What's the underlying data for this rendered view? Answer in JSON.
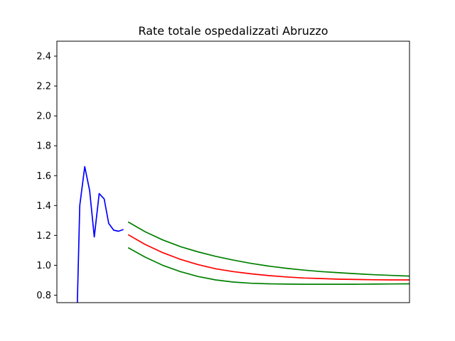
{
  "chart_data": {
    "type": "line",
    "title": "Rate totale ospedalizzati Abruzzo",
    "xlabel": "",
    "ylabel": "",
    "ylim": [
      0.75,
      2.5
    ],
    "xlim": [
      0,
      100
    ],
    "yticks": [
      0.8,
      1.0,
      1.2,
      1.4,
      1.6,
      1.8,
      2.0,
      2.2,
      2.4
    ],
    "ytick_labels": [
      "0.8",
      "1.0",
      "1.2",
      "1.4",
      "1.6",
      "1.8",
      "2.0",
      "2.2",
      "2.4"
    ],
    "grid": false,
    "series": [
      {
        "color": "#0000ff",
        "x": [
          5.8,
          6.5,
          7.9,
          9.3,
          10.6,
          12.0,
          13.4,
          14.7,
          16.1,
          17.5,
          18.9
        ],
        "y": [
          0.75,
          1.4,
          1.66,
          1.5,
          1.19,
          1.48,
          1.445,
          1.28,
          1.235,
          1.228,
          1.24
        ]
      },
      {
        "color": "#ff0000",
        "x": [
          20.2,
          25,
          30,
          35,
          40,
          45,
          50,
          55,
          60,
          65,
          70,
          75,
          80,
          85,
          90,
          95,
          100
        ],
        "y": [
          1.205,
          1.14,
          1.085,
          1.04,
          1.005,
          0.977,
          0.958,
          0.943,
          0.931,
          0.922,
          0.915,
          0.911,
          0.907,
          0.905,
          0.903,
          0.902,
          0.902
        ]
      },
      {
        "color": "#008000",
        "x": [
          20.2,
          25,
          30,
          35,
          40,
          45,
          50,
          55,
          60,
          65,
          70,
          75,
          80,
          85,
          90,
          95,
          100
        ],
        "y": [
          1.29,
          1.225,
          1.17,
          1.125,
          1.09,
          1.06,
          1.035,
          1.013,
          0.995,
          0.98,
          0.968,
          0.958,
          0.95,
          0.943,
          0.937,
          0.932,
          0.928
        ]
      },
      {
        "color": "#008000",
        "x": [
          20.2,
          25,
          30,
          35,
          40,
          45,
          50,
          55,
          60,
          65,
          70,
          75,
          80,
          85,
          90,
          95,
          100
        ],
        "y": [
          1.118,
          1.055,
          1.0,
          0.958,
          0.925,
          0.902,
          0.888,
          0.88,
          0.876,
          0.874,
          0.873,
          0.873,
          0.873,
          0.873,
          0.874,
          0.875,
          0.876
        ]
      }
    ]
  }
}
